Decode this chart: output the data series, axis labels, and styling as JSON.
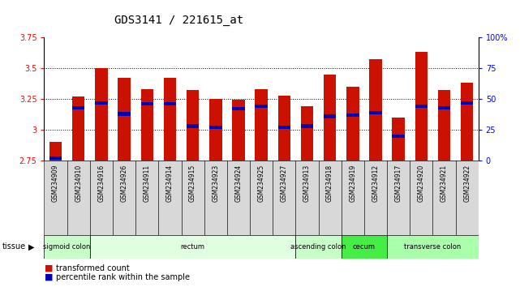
{
  "title": "GDS3141 / 221615_at",
  "samples": [
    "GSM234909",
    "GSM234910",
    "GSM234916",
    "GSM234926",
    "GSM234911",
    "GSM234914",
    "GSM234915",
    "GSM234923",
    "GSM234924",
    "GSM234925",
    "GSM234927",
    "GSM234913",
    "GSM234918",
    "GSM234919",
    "GSM234912",
    "GSM234917",
    "GSM234920",
    "GSM234921",
    "GSM234922"
  ],
  "transformed_count": [
    2.9,
    3.27,
    3.5,
    3.42,
    3.33,
    3.42,
    3.32,
    3.25,
    3.245,
    3.33,
    3.28,
    3.19,
    3.45,
    3.35,
    3.57,
    3.1,
    3.63,
    3.32,
    3.38
  ],
  "percentile_rank": [
    2,
    43,
    47,
    38,
    46,
    46,
    28,
    27,
    42,
    44,
    27,
    28,
    36,
    37,
    39,
    20,
    44,
    43,
    47
  ],
  "ylim": [
    2.75,
    3.75
  ],
  "y_ticks": [
    2.75,
    3.0,
    3.25,
    3.5,
    3.75
  ],
  "y_tick_labels": [
    "2.75",
    "3",
    "3.25",
    "3.5",
    "3.75"
  ],
  "right_ylim": [
    0,
    100
  ],
  "right_yticks": [
    0,
    25,
    50,
    75,
    100
  ],
  "right_yticklabels": [
    "0",
    "25",
    "50",
    "75",
    "100%"
  ],
  "bar_color": "#cc1100",
  "blue_color": "#0000bb",
  "tissue_groups": [
    {
      "label": "sigmoid colon",
      "start": 0,
      "end": 2,
      "color": "#c8ffc8"
    },
    {
      "label": "rectum",
      "start": 2,
      "end": 11,
      "color": "#e0ffe0"
    },
    {
      "label": "ascending colon",
      "start": 11,
      "end": 13,
      "color": "#c8ffc8"
    },
    {
      "label": "cecum",
      "start": 13,
      "end": 15,
      "color": "#44ee44"
    },
    {
      "label": "transverse colon",
      "start": 15,
      "end": 19,
      "color": "#aaffaa"
    }
  ],
  "plot_bg": "#ffffff",
  "title_fontsize": 10,
  "tick_fontsize": 7,
  "bar_width": 0.55
}
